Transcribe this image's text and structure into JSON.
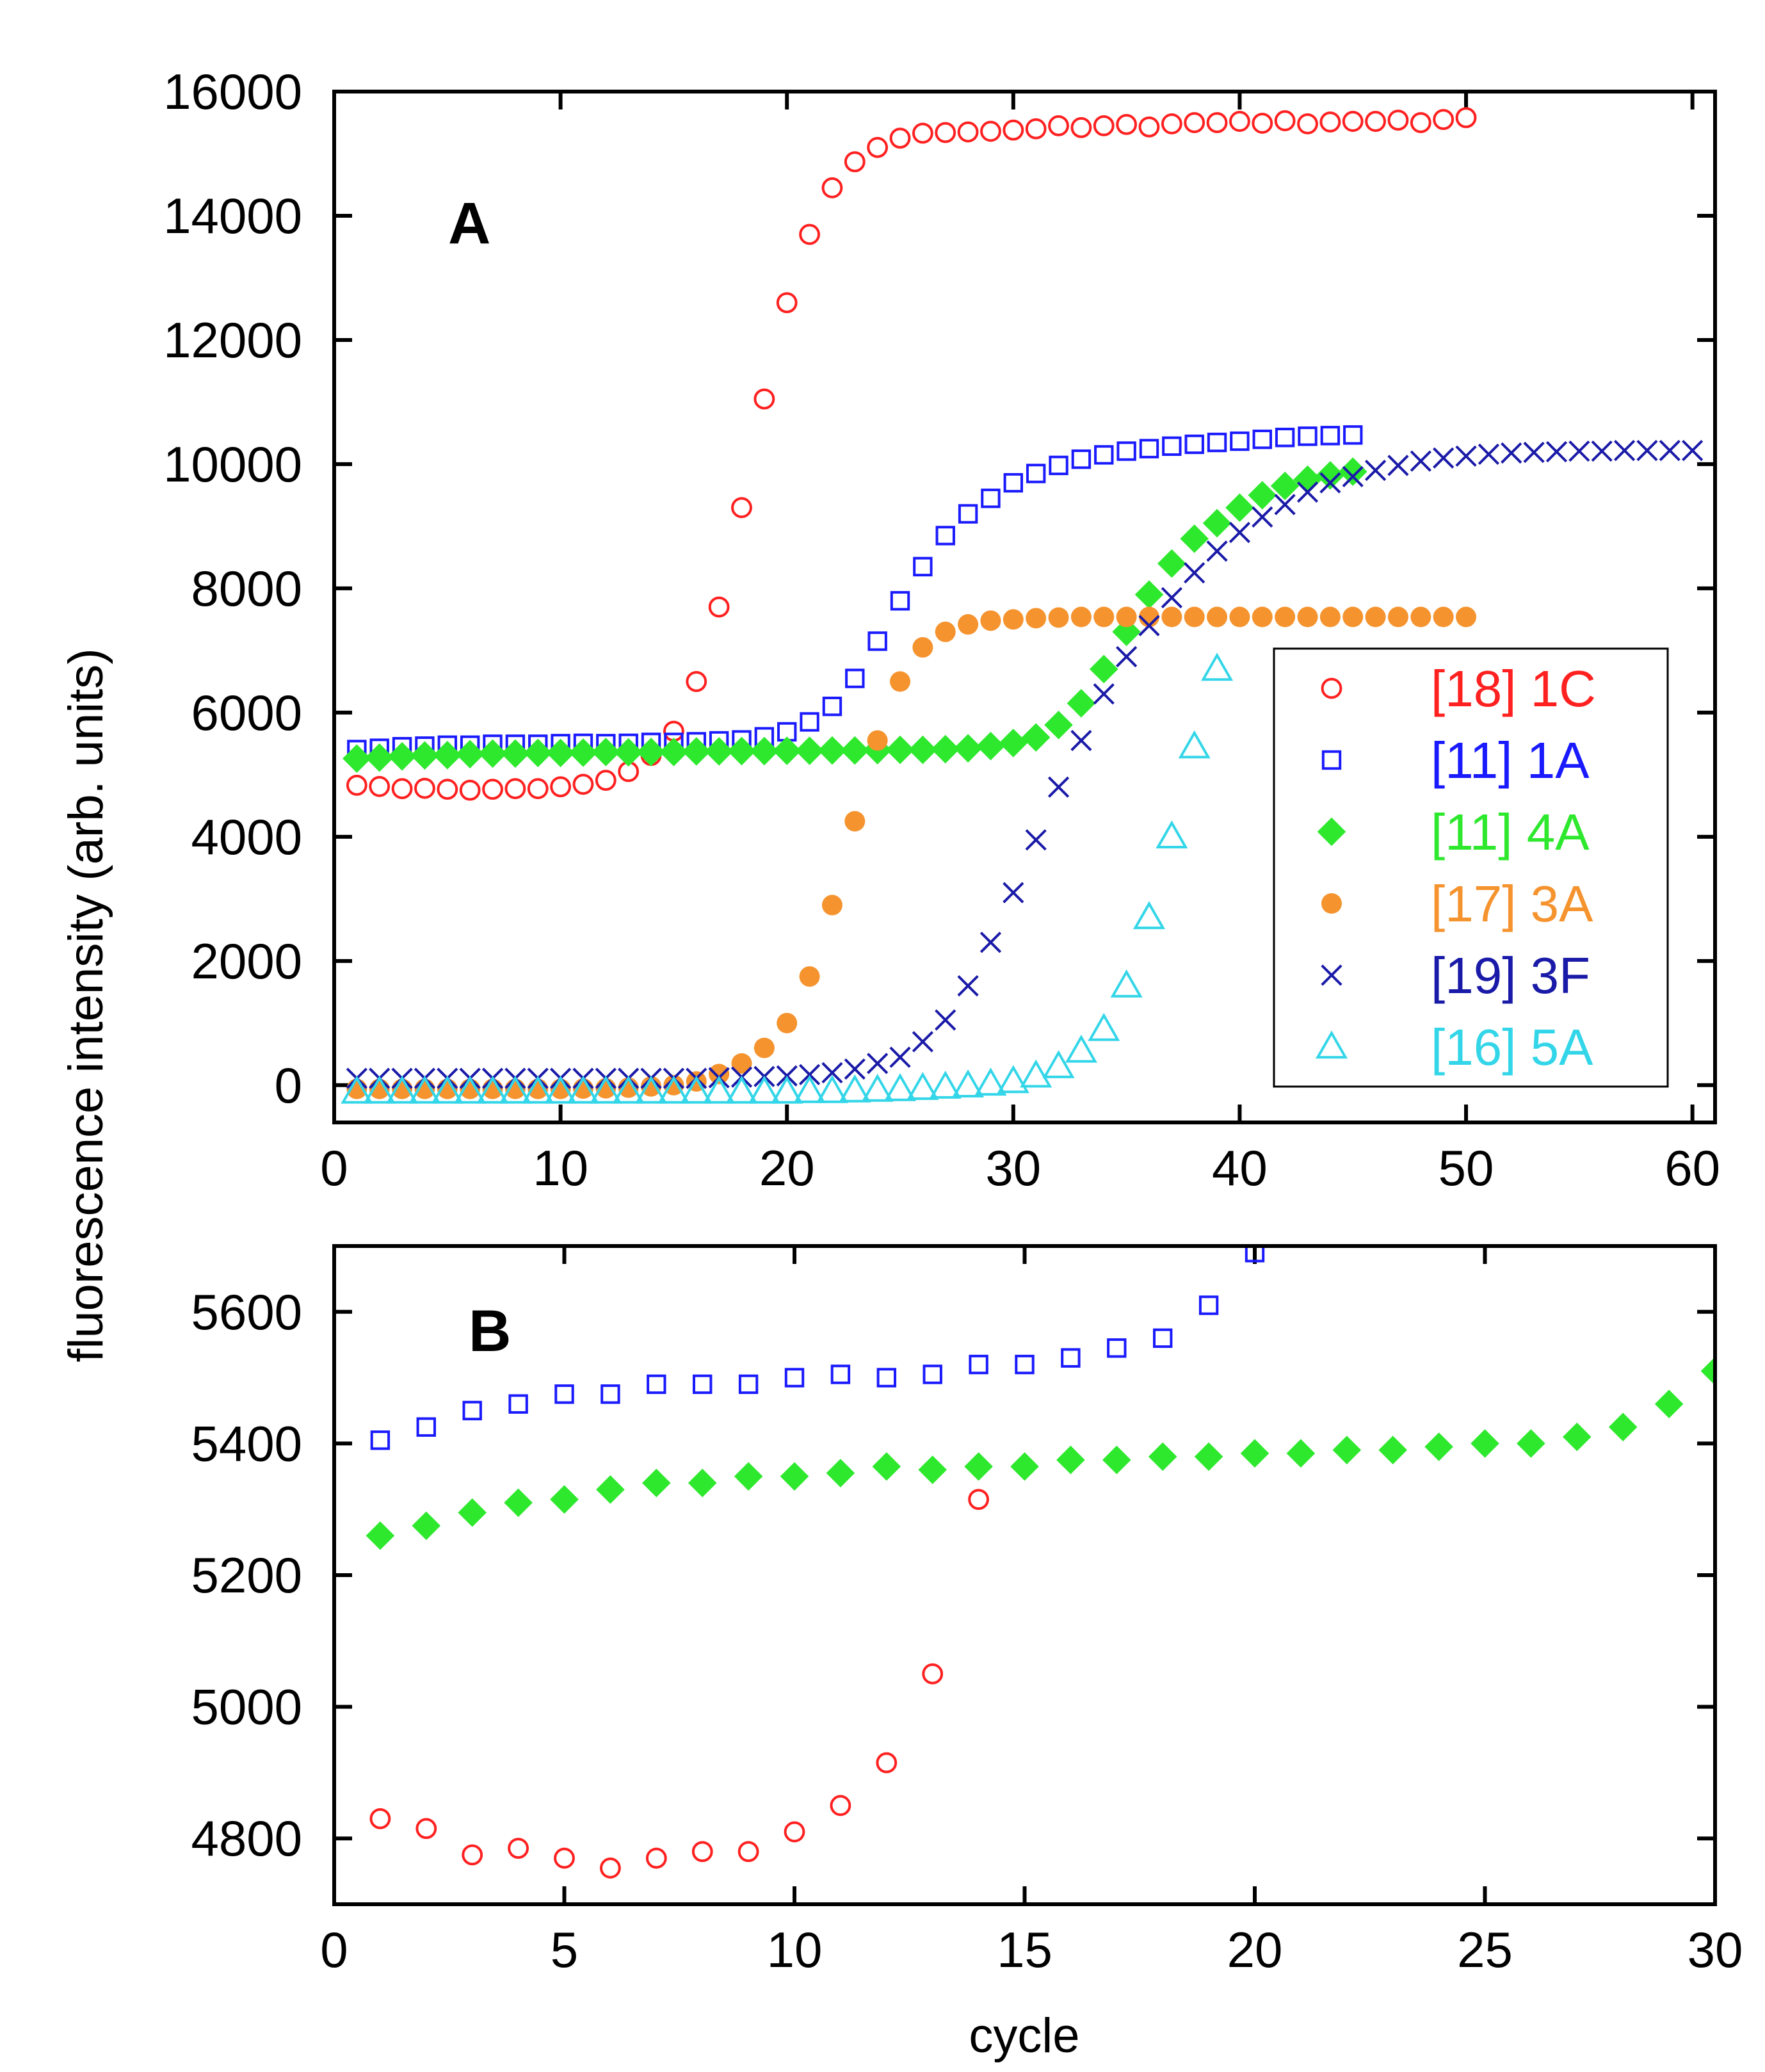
{
  "figure": {
    "ylabel": "fluorescence intensity (arb. units)",
    "xlabel": "cycle"
  },
  "chart_data": [
    {
      "type": "scatter",
      "panel": "A",
      "xlim": [
        0,
        61
      ],
      "ylim": [
        -600,
        16000
      ],
      "xticks": [
        0,
        10,
        20,
        30,
        40,
        50,
        60
      ],
      "yticks": [
        0,
        2000,
        4000,
        6000,
        8000,
        10000,
        12000,
        14000,
        16000
      ],
      "legend_position": "right-middle",
      "series": [
        {
          "name": "[18] 1C",
          "marker": "open-circle",
          "color": "#ff2020",
          "x": [
            1,
            2,
            3,
            4,
            5,
            6,
            7,
            8,
            9,
            10,
            11,
            12,
            13,
            14,
            15,
            16,
            17,
            18,
            19,
            20,
            21,
            22,
            23,
            24,
            25,
            26,
            27,
            28,
            29,
            30,
            31,
            32,
            33,
            34,
            35,
            36,
            37,
            38,
            39,
            40,
            41,
            42,
            43,
            44,
            45,
            46,
            47,
            48,
            49,
            50
          ],
          "y": [
            4830,
            4810,
            4775,
            4780,
            4765,
            4750,
            4765,
            4775,
            4775,
            4805,
            4845,
            4910,
            5050,
            5310,
            5700,
            6500,
            7700,
            9300,
            11050,
            12600,
            13700,
            14450,
            14870,
            15100,
            15250,
            15330,
            15340,
            15350,
            15360,
            15380,
            15400,
            15450,
            15420,
            15450,
            15470,
            15430,
            15480,
            15500,
            15500,
            15520,
            15490,
            15530,
            15480,
            15510,
            15520,
            15520,
            15540,
            15500,
            15550,
            15580
          ]
        },
        {
          "name": "[11] 1A",
          "marker": "open-square",
          "color": "#1a1aff",
          "x": [
            1,
            2,
            3,
            4,
            5,
            6,
            7,
            8,
            9,
            10,
            11,
            12,
            13,
            14,
            15,
            16,
            17,
            18,
            19,
            20,
            21,
            22,
            23,
            24,
            25,
            26,
            27,
            28,
            29,
            30,
            31,
            32,
            33,
            34,
            35,
            36,
            37,
            38,
            39,
            40,
            41,
            42,
            43,
            44,
            45
          ],
          "y": [
            5405,
            5425,
            5450,
            5460,
            5475,
            5475,
            5490,
            5490,
            5490,
            5500,
            5505,
            5500,
            5505,
            5520,
            5520,
            5530,
            5545,
            5560,
            5610,
            5690,
            5850,
            6100,
            6550,
            7150,
            7800,
            8350,
            8850,
            9200,
            9450,
            9700,
            9850,
            9980,
            10080,
            10150,
            10210,
            10250,
            10290,
            10320,
            10350,
            10370,
            10400,
            10430,
            10450,
            10460,
            10470
          ]
        },
        {
          "name": "[11] 4A",
          "marker": "filled-diamond",
          "color": "#2ee82e",
          "x": [
            1,
            2,
            3,
            4,
            5,
            6,
            7,
            8,
            9,
            10,
            11,
            12,
            13,
            14,
            15,
            16,
            17,
            18,
            19,
            20,
            21,
            22,
            23,
            24,
            25,
            26,
            27,
            28,
            29,
            30,
            31,
            32,
            33,
            34,
            35,
            36,
            37,
            38,
            39,
            40,
            41,
            42,
            43,
            44,
            45
          ],
          "y": [
            5260,
            5275,
            5295,
            5310,
            5315,
            5330,
            5340,
            5340,
            5350,
            5350,
            5355,
            5365,
            5360,
            5365,
            5365,
            5375,
            5375,
            5380,
            5380,
            5385,
            5385,
            5390,
            5390,
            5395,
            5400,
            5400,
            5410,
            5425,
            5460,
            5510,
            5600,
            5800,
            6150,
            6700,
            7300,
            7900,
            8400,
            8800,
            9050,
            9300,
            9500,
            9650,
            9750,
            9820,
            9880
          ]
        },
        {
          "name": "[17] 3A",
          "marker": "filled-circle",
          "color": "#f5932e",
          "x": [
            1,
            2,
            3,
            4,
            5,
            6,
            7,
            8,
            9,
            10,
            11,
            12,
            13,
            14,
            15,
            16,
            17,
            18,
            19,
            20,
            21,
            22,
            23,
            24,
            25,
            26,
            27,
            28,
            29,
            30,
            31,
            32,
            33,
            34,
            35,
            36,
            37,
            38,
            39,
            40,
            41,
            42,
            43,
            44,
            45,
            46,
            47,
            48,
            49,
            50
          ],
          "y": [
            -60,
            -60,
            -60,
            -60,
            -60,
            -60,
            -60,
            -60,
            -60,
            -60,
            -55,
            -50,
            -40,
            -20,
            0,
            60,
            180,
            350,
            600,
            1000,
            1750,
            2900,
            4250,
            5550,
            6500,
            7050,
            7300,
            7420,
            7480,
            7500,
            7520,
            7530,
            7540,
            7540,
            7540,
            7540,
            7540,
            7540,
            7540,
            7540,
            7540,
            7540,
            7540,
            7540,
            7540,
            7540,
            7540,
            7540,
            7540,
            7540
          ]
        },
        {
          "name": "[19] 3F",
          "marker": "x-cross",
          "color": "#1a1aa8",
          "x": [
            1,
            2,
            3,
            4,
            5,
            6,
            7,
            8,
            9,
            10,
            11,
            12,
            13,
            14,
            15,
            16,
            17,
            18,
            19,
            20,
            21,
            22,
            23,
            24,
            25,
            26,
            27,
            28,
            29,
            30,
            31,
            32,
            33,
            34,
            35,
            36,
            37,
            38,
            39,
            40,
            41,
            42,
            43,
            44,
            45,
            46,
            47,
            48,
            49,
            50,
            51,
            52,
            53,
            54,
            55,
            56,
            57,
            58,
            59,
            60
          ],
          "y": [
            110,
            110,
            110,
            110,
            110,
            110,
            110,
            110,
            110,
            110,
            110,
            110,
            110,
            110,
            110,
            110,
            120,
            130,
            140,
            150,
            170,
            200,
            260,
            350,
            450,
            700,
            1050,
            1600,
            2300,
            3100,
            3950,
            4800,
            5550,
            6300,
            6900,
            7400,
            7850,
            8250,
            8600,
            8900,
            9150,
            9350,
            9550,
            9700,
            9800,
            9900,
            9980,
            10050,
            10100,
            10130,
            10160,
            10180,
            10190,
            10200,
            10210,
            10210,
            10220,
            10220,
            10220,
            10220
          ]
        },
        {
          "name": "[16] 5A",
          "marker": "open-triangle",
          "color": "#33d6e8",
          "x": [
            1,
            2,
            3,
            4,
            5,
            6,
            7,
            8,
            9,
            10,
            11,
            12,
            13,
            14,
            15,
            16,
            17,
            18,
            19,
            20,
            21,
            22,
            23,
            24,
            25,
            26,
            27,
            28,
            29,
            30,
            31,
            32,
            33,
            34,
            35,
            36,
            37,
            38,
            39
          ],
          "y": [
            -110,
            -110,
            -110,
            -110,
            -110,
            -110,
            -110,
            -110,
            -110,
            -110,
            -110,
            -110,
            -110,
            -110,
            -110,
            -110,
            -110,
            -110,
            -110,
            -110,
            -100,
            -100,
            -90,
            -80,
            -70,
            -50,
            -30,
            -10,
            20,
            60,
            150,
            300,
            550,
            900,
            1600,
            2700,
            4000,
            5450,
            6700
          ]
        }
      ]
    },
    {
      "type": "scatter",
      "panel": "B",
      "xlim": [
        0,
        30
      ],
      "ylim": [
        4700,
        5700
      ],
      "xticks": [
        0,
        5,
        10,
        15,
        20,
        25,
        30
      ],
      "yticks": [
        4800,
        5000,
        5200,
        5400,
        5600
      ],
      "series": [
        {
          "name": "[18] 1C",
          "marker": "open-circle",
          "color": "#ff2020",
          "x": [
            1,
            2,
            3,
            4,
            5,
            6,
            7,
            8,
            9,
            10,
            11,
            12,
            13,
            14
          ],
          "y": [
            4830,
            4815,
            4775,
            4785,
            4770,
            4755,
            4770,
            4780,
            4780,
            4810,
            4850,
            4915,
            5050,
            5315
          ]
        },
        {
          "name": "[11] 1A",
          "marker": "open-square",
          "color": "#1a1aff",
          "x": [
            1,
            2,
            3,
            4,
            5,
            6,
            7,
            8,
            9,
            10,
            11,
            12,
            13,
            14,
            15,
            16,
            17,
            18,
            19,
            20
          ],
          "y": [
            5405,
            5425,
            5450,
            5460,
            5475,
            5475,
            5490,
            5490,
            5490,
            5500,
            5505,
            5500,
            5505,
            5520,
            5520,
            5530,
            5545,
            5560,
            5610,
            5690
          ]
        },
        {
          "name": "[11] 4A",
          "marker": "filled-diamond",
          "color": "#2ee82e",
          "x": [
            1,
            2,
            3,
            4,
            5,
            6,
            7,
            8,
            9,
            10,
            11,
            12,
            13,
            14,
            15,
            16,
            17,
            18,
            19,
            20,
            21,
            22,
            23,
            24,
            25,
            26,
            27,
            28,
            29,
            30
          ],
          "y": [
            5260,
            5275,
            5295,
            5310,
            5315,
            5330,
            5340,
            5340,
            5350,
            5350,
            5355,
            5365,
            5360,
            5365,
            5365,
            5375,
            5375,
            5380,
            5380,
            5385,
            5385,
            5390,
            5390,
            5395,
            5400,
            5400,
            5410,
            5425,
            5460,
            5510
          ]
        }
      ]
    }
  ]
}
